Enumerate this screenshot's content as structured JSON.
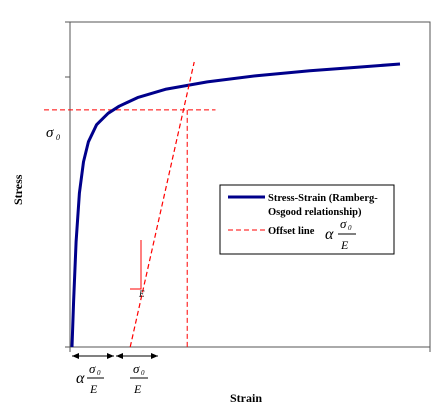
{
  "chart_data": {
    "type": "line",
    "xlabel": "Strain",
    "ylabel": "Stress",
    "series": [
      {
        "name": "Stress-Strain (Ramberg-Osgood relationship)",
        "legend_lines": [
          "Stress-Strain (Ramberg-",
          "Osgood relationship)"
        ],
        "style": "solid",
        "color": "#00008b",
        "points": [
          [
            0,
            0
          ],
          [
            0.004,
            0.16
          ],
          [
            0.01,
            0.37
          ],
          [
            0.018,
            0.54
          ],
          [
            0.028,
            0.65
          ],
          [
            0.04,
            0.72
          ],
          [
            0.06,
            0.78
          ],
          [
            0.088,
            0.82
          ],
          [
            0.115,
            0.845
          ],
          [
            0.16,
            0.875
          ],
          [
            0.23,
            0.905
          ],
          [
            0.33,
            0.93
          ],
          [
            0.45,
            0.952
          ],
          [
            0.58,
            0.969
          ],
          [
            0.7,
            0.982
          ],
          [
            0.8,
            0.993
          ]
        ]
      },
      {
        "name": "Offset line",
        "style": "dashed",
        "color": "#ff0000",
        "points": [
          [
            0.142,
            0
          ],
          [
            0.298,
            1.0
          ]
        ]
      }
    ],
    "reference_lines": {
      "sigma0_level": 0.832,
      "offset_start": 0.142,
      "offset_end": 0.281,
      "stress_line_to": 0.35
    },
    "annotations": {
      "sigma0": "σ",
      "sigma0_sub": "0",
      "alpha": "α",
      "E": "E",
      "slope_E": "E",
      "dim_alpha_num": "σ",
      "dim_alpha_num_sub": "0",
      "dim_alpha_den": "E",
      "dim_elastic_num": "σ",
      "dim_elastic_num_sub": "0",
      "dim_elastic_den": "E"
    },
    "legend_position": "right"
  }
}
